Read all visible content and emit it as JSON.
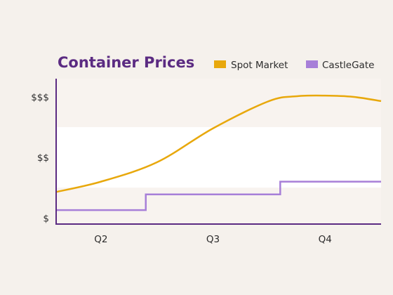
{
  "colors": {
    "background": "#f5f1ec",
    "plot_band_light": "#ffffff",
    "plot_band_tint": "#f8f3ef",
    "axis": "#5b2b82",
    "title": "#5b2b82",
    "text": "#2c2c2c"
  },
  "chart_data": {
    "type": "line",
    "title": "Container Prices",
    "xlabel": "",
    "ylabel": "",
    "categories": [
      "Q2",
      "Q3",
      "Q4"
    ],
    "y_ticks": [
      {
        "label": "$",
        "value": 1
      },
      {
        "label": "$$",
        "value": 2
      },
      {
        "label": "$$$",
        "value": 3
      }
    ],
    "xlim": [
      1.6,
      4.5
    ],
    "ylim": [
      0.9,
      3.3
    ],
    "grid": false,
    "legend_position": "top-right",
    "series": [
      {
        "name": "Spot Market",
        "color": "#e8a80c",
        "style": "smooth",
        "points": [
          [
            1.6,
            1.43
          ],
          [
            2.0,
            1.6
          ],
          [
            2.5,
            1.92
          ],
          [
            3.0,
            2.48
          ],
          [
            3.5,
            2.93
          ],
          [
            3.75,
            3.01
          ],
          [
            4.0,
            3.02
          ],
          [
            4.25,
            3.0
          ],
          [
            4.5,
            2.93
          ]
        ]
      },
      {
        "name": "CastleGate",
        "color": "#a77fd8",
        "style": "step",
        "points": [
          [
            1.6,
            1.13
          ],
          [
            2.4,
            1.13
          ],
          [
            2.4,
            1.39
          ],
          [
            3.6,
            1.39
          ],
          [
            3.6,
            1.6
          ],
          [
            4.5,
            1.6
          ]
        ]
      }
    ]
  }
}
